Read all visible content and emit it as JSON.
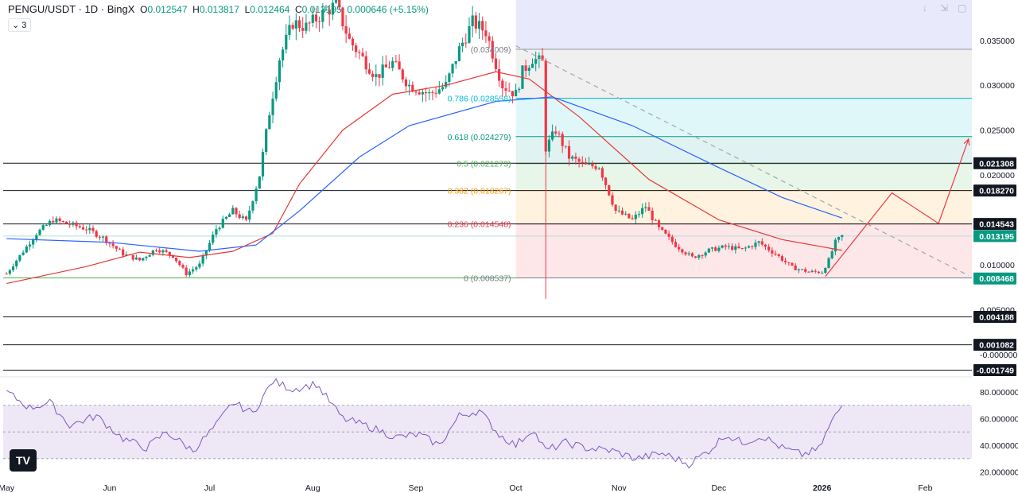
{
  "header": {
    "symbol": "PENGU/USDT · 1D · BingX",
    "open_label": "O",
    "open": "0.012547",
    "high_label": "H",
    "high": "0.013817",
    "low_label": "L",
    "low": "0.012464",
    "close_label": "C",
    "close": "0.013195",
    "change": "0.000646 (+5.15%)",
    "indicator_count": "3"
  },
  "colors": {
    "up": "#089981",
    "down": "#f23645",
    "ma_red": "#e53935",
    "ma_blue": "#2962ff",
    "rsi": "#7e57c2",
    "rsi_band": "#ede7f6",
    "price_tag_green": "#089981"
  },
  "chart_data": {
    "type": "candlestick",
    "y_range": [
      -0.0025,
      0.0395
    ],
    "y_ticks": [
      "0.035000",
      "0.030000",
      "0.025000",
      "0.020000",
      "0.010000",
      "0.005000",
      "-0.000000"
    ],
    "x_ticks": [
      "May",
      "Jun",
      "Jul",
      "Aug",
      "Sep",
      "Oct",
      "Nov",
      "Dec",
      "2026",
      "Feb"
    ],
    "x_tick_dates": [
      "2025-05-01",
      "2025-06-01",
      "2025-07-01",
      "2025-08-01",
      "2025-09-01",
      "2025-10-01",
      "2025-11-01",
      "2025-12-01",
      "2026-01-01",
      "2026-02-01"
    ],
    "x_range": [
      "2025-04-30",
      "2026-02-15"
    ],
    "series_price_path": [
      [
        "2025-05-01",
        0.009
      ],
      [
        "2025-05-05",
        0.011
      ],
      [
        "2025-05-10",
        0.0135
      ],
      [
        "2025-05-15",
        0.015
      ],
      [
        "2025-05-20",
        0.0145
      ],
      [
        "2025-05-25",
        0.014
      ],
      [
        "2025-05-30",
        0.013
      ],
      [
        "2025-06-05",
        0.0112
      ],
      [
        "2025-06-10",
        0.0105
      ],
      [
        "2025-06-15",
        0.0118
      ],
      [
        "2025-06-20",
        0.011
      ],
      [
        "2025-06-24",
        0.009
      ],
      [
        "2025-06-28",
        0.01
      ],
      [
        "2025-07-03",
        0.014
      ],
      [
        "2025-07-08",
        0.016
      ],
      [
        "2025-07-12",
        0.0148
      ],
      [
        "2025-07-16",
        0.02
      ],
      [
        "2025-07-19",
        0.027
      ],
      [
        "2025-07-22",
        0.033
      ],
      [
        "2025-07-26",
        0.037
      ],
      [
        "2025-07-30",
        0.0365
      ],
      [
        "2025-08-04",
        0.038
      ],
      [
        "2025-08-08",
        0.039
      ],
      [
        "2025-08-12",
        0.035
      ],
      [
        "2025-08-16",
        0.033
      ],
      [
        "2025-08-20",
        0.031
      ],
      [
        "2025-08-25",
        0.0325
      ],
      [
        "2025-08-30",
        0.03
      ],
      [
        "2025-09-05",
        0.029
      ],
      [
        "2025-09-10",
        0.03
      ],
      [
        "2025-09-14",
        0.034
      ],
      [
        "2025-09-18",
        0.037
      ],
      [
        "2025-09-22",
        0.036
      ],
      [
        "2025-09-27",
        0.03
      ],
      [
        "2025-10-01",
        0.029
      ],
      [
        "2025-10-03",
        0.0315
      ],
      [
        "2025-10-06",
        0.033
      ],
      [
        "2025-10-09",
        0.0325
      ],
      [
        "2025-10-10",
        0.023
      ],
      [
        "2025-10-13",
        0.025
      ],
      [
        "2025-10-17",
        0.022
      ],
      [
        "2025-10-22",
        0.021
      ],
      [
        "2025-10-26",
        0.021
      ],
      [
        "2025-10-31",
        0.016
      ],
      [
        "2025-11-05",
        0.015
      ],
      [
        "2025-11-09",
        0.0165
      ],
      [
        "2025-11-13",
        0.014
      ],
      [
        "2025-11-18",
        0.0122
      ],
      [
        "2025-11-23",
        0.0108
      ],
      [
        "2025-11-28",
        0.0116
      ],
      [
        "2025-12-03",
        0.012
      ],
      [
        "2025-12-08",
        0.0117
      ],
      [
        "2025-12-13",
        0.0125
      ],
      [
        "2025-12-18",
        0.0112
      ],
      [
        "2025-12-23",
        0.0097
      ],
      [
        "2025-12-28",
        0.0092
      ],
      [
        "2026-01-01",
        0.0092
      ],
      [
        "2026-01-03",
        0.0105
      ],
      [
        "2026-01-05",
        0.0125
      ],
      [
        "2026-01-07",
        0.0132
      ]
    ],
    "ma_red_path": [
      [
        "2025-05-01",
        0.0079
      ],
      [
        "2025-05-25",
        0.0098
      ],
      [
        "2025-06-10",
        0.0114
      ],
      [
        "2025-06-25",
        0.0108
      ],
      [
        "2025-07-08",
        0.0115
      ],
      [
        "2025-07-20",
        0.0135
      ],
      [
        "2025-07-28",
        0.019
      ],
      [
        "2025-08-10",
        0.025
      ],
      [
        "2025-08-25",
        0.029
      ],
      [
        "2025-09-10",
        0.03
      ],
      [
        "2025-09-25",
        0.0315
      ],
      [
        "2025-10-05",
        0.0307
      ],
      [
        "2025-10-20",
        0.0265
      ],
      [
        "2025-11-10",
        0.0195
      ],
      [
        "2025-12-01",
        0.015
      ],
      [
        "2025-12-20",
        0.0128
      ],
      [
        "2026-01-07",
        0.0116
      ]
    ],
    "ma_blue_path": [
      [
        "2025-05-01",
        0.0129
      ],
      [
        "2025-06-01",
        0.0125
      ],
      [
        "2025-06-28",
        0.0115
      ],
      [
        "2025-07-15",
        0.0122
      ],
      [
        "2025-07-28",
        0.016
      ],
      [
        "2025-08-15",
        0.022
      ],
      [
        "2025-08-30",
        0.0255
      ],
      [
        "2025-09-25",
        0.0282
      ],
      [
        "2025-10-12",
        0.0287
      ],
      [
        "2025-11-05",
        0.0255
      ],
      [
        "2025-11-30",
        0.021
      ],
      [
        "2025-12-20",
        0.0175
      ],
      [
        "2026-01-07",
        0.0152
      ]
    ],
    "fib": {
      "levels": [
        {
          "ratio": "1",
          "price": 0.034009,
          "label": "(0.034009)",
          "fill": "#f0f0f0"
        },
        {
          "ratio": "0.786",
          "price": 0.028558,
          "label": "0.786 (0.028558)",
          "color": "#00bcd4",
          "fill": "#e0f7fa"
        },
        {
          "ratio": "0.618",
          "price": 0.024279,
          "label": "0.618 (0.024279)",
          "color": "#089981",
          "fill": "#e0f2f1"
        },
        {
          "ratio": "0.5",
          "price": 0.021273,
          "label": "0.5 (0.021273)",
          "color": "#4caf50",
          "fill": "#e8f5e9"
        },
        {
          "ratio": "0.382",
          "price": 0.018267,
          "label": "0.382 (0.018267)",
          "color": "#ff9800",
          "fill": "#fff3e0"
        },
        {
          "ratio": "0.236",
          "price": 0.014548,
          "label": "0.236 (0.014548)",
          "color": "#f23645",
          "fill": "#fde7e9"
        },
        {
          "ratio": "0",
          "price": 0.008537,
          "label": "0 (0.008537)",
          "color": "#787b86"
        }
      ]
    },
    "horizontal_lines": [
      0.021308,
      0.01827,
      0.014543,
      0.004188,
      0.001082,
      -0.001749
    ],
    "price_tags": [
      {
        "value": 0.021308,
        "label": "0.021308",
        "style": "dark"
      },
      {
        "value": 0.01827,
        "label": "0.018270",
        "style": "dark"
      },
      {
        "value": 0.014543,
        "label": "0.014543",
        "style": "dark"
      },
      {
        "value": 0.013195,
        "label": "0.013195",
        "style": "green"
      },
      {
        "value": 0.008468,
        "label": "0.008468",
        "style": "green"
      },
      {
        "value": 0.004188,
        "label": "0.004188",
        "style": "dark"
      },
      {
        "value": 0.001082,
        "label": "0.001082",
        "style": "dark"
      },
      {
        "value": -0.001749,
        "label": "-0.001749",
        "style": "dark"
      }
    ],
    "projection_path": [
      [
        "2026-01-02",
        0.0087
      ],
      [
        "2026-01-22",
        0.018
      ],
      [
        "2026-02-05",
        0.0146
      ],
      [
        "2026-02-14",
        0.024
      ]
    ],
    "trendline": [
      [
        "2025-10-01",
        0.0344
      ],
      [
        "2026-02-14",
        0.0088
      ]
    ],
    "rsi": {
      "range": [
        15,
        90
      ],
      "ticks": [
        "80.000000",
        "60.000000",
        "40.000000",
        "20.000000"
      ],
      "band": [
        30,
        70
      ],
      "mid": 50,
      "path": [
        [
          "2025-05-01",
          80
        ],
        [
          "2025-05-08",
          68
        ],
        [
          "2025-05-14",
          72
        ],
        [
          "2025-05-20",
          55
        ],
        [
          "2025-05-28",
          62
        ],
        [
          "2025-06-05",
          45
        ],
        [
          "2025-06-12",
          38
        ],
        [
          "2025-06-18",
          50
        ],
        [
          "2025-06-26",
          36
        ],
        [
          "2025-07-03",
          55
        ],
        [
          "2025-07-08",
          72
        ],
        [
          "2025-07-14",
          64
        ],
        [
          "2025-07-20",
          88
        ],
        [
          "2025-07-26",
          82
        ],
        [
          "2025-08-02",
          86
        ],
        [
          "2025-08-10",
          60
        ],
        [
          "2025-08-18",
          54
        ],
        [
          "2025-08-26",
          46
        ],
        [
          "2025-09-02",
          48
        ],
        [
          "2025-09-08",
          40
        ],
        [
          "2025-09-14",
          62
        ],
        [
          "2025-09-20",
          66
        ],
        [
          "2025-09-26",
          48
        ],
        [
          "2025-10-01",
          40
        ],
        [
          "2025-10-06",
          52
        ],
        [
          "2025-10-10",
          36
        ],
        [
          "2025-10-16",
          42
        ],
        [
          "2025-10-22",
          38
        ],
        [
          "2025-10-30",
          36
        ],
        [
          "2025-11-06",
          30
        ],
        [
          "2025-11-14",
          34
        ],
        [
          "2025-11-22",
          26
        ],
        [
          "2025-11-28",
          36
        ],
        [
          "2025-12-03",
          48
        ],
        [
          "2025-12-08",
          42
        ],
        [
          "2025-12-14",
          47
        ],
        [
          "2025-12-20",
          38
        ],
        [
          "2025-12-26",
          33
        ],
        [
          "2025-12-31",
          37
        ],
        [
          "2026-01-04",
          58
        ],
        [
          "2026-01-07",
          70
        ]
      ]
    }
  }
}
